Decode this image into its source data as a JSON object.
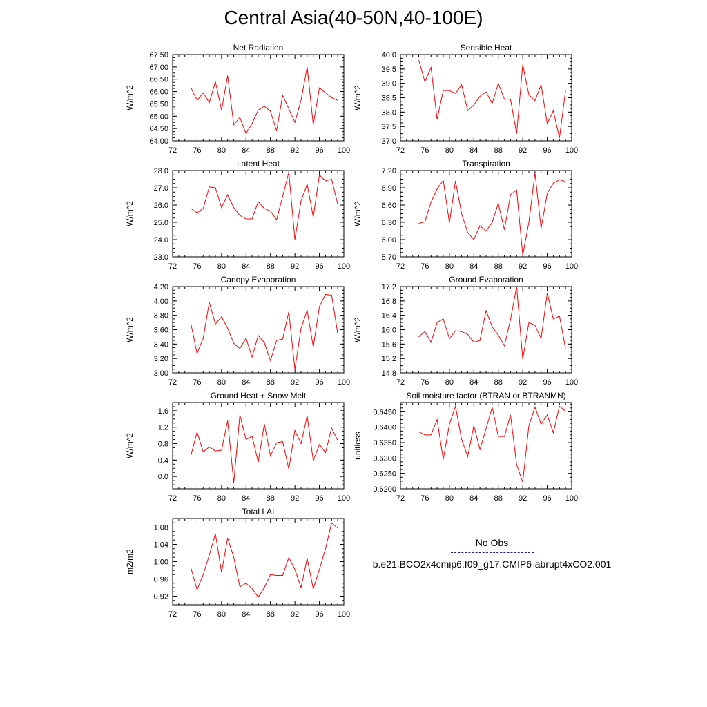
{
  "title": "Central Asia(40-50N,40-100E)",
  "legend": {
    "obs_label": "No Obs",
    "model_label": "b.e21.BCO2x4cmip6.f09_g17.CMIP6-abrupt4xCO2.001",
    "obs_color": "#1a1a8c",
    "model_color": "#ff0000"
  },
  "chart_data": [
    {
      "type": "line",
      "title": "Net Radiation",
      "ylabel": "W/m^2",
      "xlim": [
        72,
        100
      ],
      "ylim": [
        64.0,
        67.5
      ],
      "xticks": [
        72,
        76,
        80,
        84,
        88,
        92,
        96,
        100
      ],
      "yticks": [
        "64.00",
        "64.50",
        "65.00",
        "65.50",
        "66.00",
        "66.50",
        "67.00",
        "67.50"
      ],
      "x": [
        75,
        76,
        77,
        78,
        79,
        80,
        81,
        82,
        83,
        84,
        85,
        86,
        87,
        88,
        89,
        90,
        91,
        92,
        93,
        94,
        95,
        96,
        97,
        98,
        99
      ],
      "series": [
        {
          "values": [
            66.15,
            65.65,
            65.95,
            65.55,
            66.4,
            65.25,
            66.65,
            64.65,
            64.95,
            64.3,
            64.7,
            65.25,
            65.4,
            65.2,
            64.4,
            65.85,
            65.3,
            64.75,
            65.65,
            67.0,
            64.65,
            66.15,
            65.95,
            65.75,
            65.65
          ]
        }
      ]
    },
    {
      "type": "line",
      "title": "Sensible Heat",
      "ylabel": "W/m^2",
      "xlim": [
        72,
        100
      ],
      "ylim": [
        37.0,
        40.0
      ],
      "xticks": [
        72,
        76,
        80,
        84,
        88,
        92,
        96,
        100
      ],
      "yticks": [
        "37.0",
        "37.5",
        "38.0",
        "38.5",
        "39.0",
        "39.5",
        "40.0"
      ],
      "x": [
        75,
        76,
        77,
        78,
        79,
        80,
        81,
        82,
        83,
        84,
        85,
        86,
        87,
        88,
        89,
        90,
        91,
        92,
        93,
        94,
        95,
        96,
        97,
        98,
        99
      ],
      "series": [
        {
          "values": [
            39.8,
            39.05,
            39.55,
            37.75,
            38.75,
            38.75,
            38.65,
            38.95,
            38.05,
            38.25,
            38.55,
            38.7,
            38.3,
            39.0,
            38.45,
            38.45,
            37.25,
            39.65,
            38.6,
            38.4,
            38.95,
            37.6,
            38.05,
            37.1,
            38.75
          ]
        }
      ]
    },
    {
      "type": "line",
      "title": "Latent Heat",
      "ylabel": "W/m^2",
      "xlim": [
        72,
        100
      ],
      "ylim": [
        23.0,
        28.0
      ],
      "xticks": [
        72,
        76,
        80,
        84,
        88,
        92,
        96,
        100
      ],
      "yticks": [
        "23.0",
        "24.0",
        "25.0",
        "26.0",
        "27.0",
        "28.0"
      ],
      "x": [
        75,
        76,
        77,
        78,
        79,
        80,
        81,
        82,
        83,
        84,
        85,
        86,
        87,
        88,
        89,
        90,
        91,
        92,
        93,
        94,
        95,
        96,
        97,
        98,
        99
      ],
      "series": [
        {
          "values": [
            25.8,
            25.55,
            25.8,
            27.05,
            27.0,
            25.85,
            26.6,
            25.85,
            25.4,
            25.2,
            25.2,
            26.2,
            25.8,
            25.65,
            25.15,
            26.5,
            27.9,
            24.0,
            26.25,
            27.2,
            25.3,
            27.75,
            27.4,
            27.5,
            26.05
          ]
        }
      ]
    },
    {
      "type": "line",
      "title": "Transpiration",
      "ylabel": "W/m^2",
      "xlim": [
        72,
        100
      ],
      "ylim": [
        5.7,
        7.2
      ],
      "xticks": [
        72,
        76,
        80,
        84,
        88,
        92,
        96,
        100
      ],
      "yticks": [
        "5.70",
        "6.00",
        "6.30",
        "6.60",
        "6.90",
        "7.20"
      ],
      "x": [
        75,
        76,
        77,
        78,
        79,
        80,
        81,
        82,
        83,
        84,
        85,
        86,
        87,
        88,
        89,
        90,
        91,
        92,
        93,
        94,
        95,
        96,
        97,
        98,
        99
      ],
      "series": [
        {
          "values": [
            6.28,
            6.31,
            6.65,
            6.88,
            7.03,
            6.29,
            7.02,
            6.45,
            6.12,
            6.0,
            6.24,
            6.15,
            6.3,
            6.63,
            6.17,
            6.78,
            6.86,
            5.73,
            6.3,
            7.16,
            6.19,
            6.8,
            6.98,
            7.04,
            7.01
          ]
        }
      ]
    },
    {
      "type": "line",
      "title": "Canopy Evaporation",
      "ylabel": "W/m^2",
      "xlim": [
        72,
        100
      ],
      "ylim": [
        3.0,
        4.2
      ],
      "xticks": [
        72,
        76,
        80,
        84,
        88,
        92,
        96,
        100
      ],
      "yticks": [
        "3.00",
        "3.20",
        "3.40",
        "3.60",
        "3.80",
        "4.00",
        "4.20"
      ],
      "x": [
        75,
        76,
        77,
        78,
        79,
        80,
        81,
        82,
        83,
        84,
        85,
        86,
        87,
        88,
        89,
        90,
        91,
        92,
        93,
        94,
        95,
        96,
        97,
        98,
        99
      ],
      "series": [
        {
          "values": [
            3.68,
            3.27,
            3.48,
            3.98,
            3.68,
            3.78,
            3.62,
            3.41,
            3.34,
            3.48,
            3.22,
            3.52,
            3.42,
            3.17,
            3.45,
            3.47,
            3.85,
            3.05,
            3.62,
            3.87,
            3.36,
            3.92,
            4.09,
            4.08,
            3.55
          ]
        }
      ]
    },
    {
      "type": "line",
      "title": "Ground Evaporation",
      "ylabel": "W/m^2",
      "xlim": [
        72,
        100
      ],
      "ylim": [
        14.8,
        17.2
      ],
      "xticks": [
        72,
        76,
        80,
        84,
        88,
        92,
        96,
        100
      ],
      "yticks": [
        "14.8",
        "15.2",
        "15.6",
        "16.0",
        "16.4",
        "16.8",
        "17.2"
      ],
      "x": [
        75,
        76,
        77,
        78,
        79,
        80,
        81,
        82,
        83,
        84,
        85,
        86,
        87,
        88,
        89,
        90,
        91,
        92,
        93,
        94,
        95,
        96,
        97,
        98,
        99
      ],
      "series": [
        {
          "values": [
            15.8,
            15.95,
            15.65,
            16.2,
            16.3,
            15.75,
            15.97,
            15.95,
            15.87,
            15.65,
            15.7,
            16.53,
            16.08,
            15.85,
            15.55,
            16.28,
            17.2,
            15.18,
            16.2,
            16.12,
            15.75,
            17.02,
            16.3,
            16.38,
            15.48
          ]
        }
      ]
    },
    {
      "type": "line",
      "title": "Ground Heat + Snow Melt",
      "ylabel": "W/m^2",
      "xlim": [
        72,
        100
      ],
      "ylim": [
        -0.3,
        1.8
      ],
      "xticks": [
        72,
        76,
        80,
        84,
        88,
        92,
        96,
        100
      ],
      "yticks": [
        "0.0",
        "0.4",
        "0.8",
        "1.2",
        "1.6"
      ],
      "x": [
        75,
        76,
        77,
        78,
        79,
        80,
        81,
        82,
        83,
        84,
        85,
        86,
        87,
        88,
        89,
        90,
        91,
        92,
        93,
        94,
        95,
        96,
        97,
        98,
        99
      ],
      "series": [
        {
          "values": [
            0.52,
            1.08,
            0.6,
            0.72,
            0.62,
            0.64,
            1.36,
            -0.15,
            1.5,
            0.9,
            0.98,
            0.35,
            1.28,
            0.5,
            0.82,
            0.85,
            0.18,
            1.12,
            0.8,
            1.48,
            0.38,
            0.78,
            0.58,
            1.18,
            0.88
          ]
        }
      ]
    },
    {
      "type": "line",
      "title": "Soil moisture factor (BTRAN or BTRANMN)",
      "ylabel": "unitless",
      "xlim": [
        72,
        100
      ],
      "ylim": [
        0.62,
        0.648
      ],
      "xticks": [
        72,
        76,
        80,
        84,
        88,
        92,
        96,
        100
      ],
      "yticks": [
        "0.6200",
        "0.6250",
        "0.6300",
        "0.6350",
        "0.6400",
        "0.6450"
      ],
      "x": [
        75,
        76,
        77,
        78,
        79,
        80,
        81,
        82,
        83,
        84,
        85,
        86,
        87,
        88,
        89,
        90,
        91,
        92,
        93,
        94,
        95,
        96,
        97,
        98,
        99
      ],
      "series": [
        {
          "values": [
            0.6385,
            0.6375,
            0.6375,
            0.6425,
            0.6295,
            0.641,
            0.6468,
            0.636,
            0.6305,
            0.6405,
            0.6328,
            0.6395,
            0.6465,
            0.637,
            0.637,
            0.644,
            0.6278,
            0.6222,
            0.6405,
            0.6465,
            0.641,
            0.644,
            0.6382,
            0.6468,
            0.6452
          ]
        }
      ]
    },
    {
      "type": "line",
      "title": "Total LAI",
      "ylabel": "m2/m2",
      "xlim": [
        72,
        100
      ],
      "ylim": [
        0.9,
        1.1
      ],
      "xticks": [
        72,
        76,
        80,
        84,
        88,
        92,
        96,
        100
      ],
      "yticks": [
        "0.92",
        "0.96",
        "1.00",
        "1.04",
        "1.08"
      ],
      "x": [
        75,
        76,
        77,
        78,
        79,
        80,
        81,
        82,
        83,
        84,
        85,
        86,
        87,
        88,
        89,
        90,
        91,
        92,
        93,
        94,
        95,
        96,
        97,
        98,
        99
      ],
      "series": [
        {
          "values": [
            0.985,
            0.935,
            0.97,
            1.015,
            1.065,
            0.975,
            1.055,
            1.01,
            0.942,
            0.95,
            0.938,
            0.918,
            0.94,
            0.97,
            0.968,
            0.968,
            1.01,
            0.982,
            0.94,
            1.008,
            0.937,
            0.982,
            1.03,
            1.09,
            1.078
          ]
        }
      ]
    }
  ]
}
